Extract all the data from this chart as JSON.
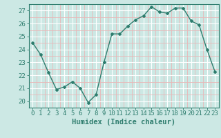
{
  "x": [
    0,
    1,
    2,
    3,
    4,
    5,
    6,
    7,
    8,
    9,
    10,
    11,
    12,
    13,
    14,
    15,
    16,
    17,
    18,
    19,
    20,
    21,
    22,
    23
  ],
  "y": [
    24.5,
    23.6,
    22.2,
    20.9,
    21.1,
    21.5,
    21.0,
    19.9,
    20.5,
    23.0,
    25.2,
    25.2,
    25.8,
    26.3,
    26.6,
    27.3,
    26.9,
    26.8,
    27.2,
    27.2,
    26.2,
    25.9,
    24.0,
    22.3
  ],
  "line_color": "#2e7d6e",
  "bg_color": "#cce8e4",
  "grid_major_color": "#ffffff",
  "grid_minor_color": "#e8b8b8",
  "xlabel": "Humidex (Indice chaleur)",
  "ylim": [
    19.5,
    27.5
  ],
  "xlim": [
    -0.5,
    23.5
  ],
  "yticks": [
    20,
    21,
    22,
    23,
    24,
    25,
    26,
    27
  ],
  "xticks": [
    0,
    1,
    2,
    3,
    4,
    5,
    6,
    7,
    8,
    9,
    10,
    11,
    12,
    13,
    14,
    15,
    16,
    17,
    18,
    19,
    20,
    21,
    22,
    23
  ],
  "tick_color": "#2e7d6e",
  "label_color": "#2e7d6e",
  "font_size": 6.5,
  "xlabel_font_size": 7.5,
  "marker": "D",
  "marker_size": 2.0,
  "line_width": 1.0
}
